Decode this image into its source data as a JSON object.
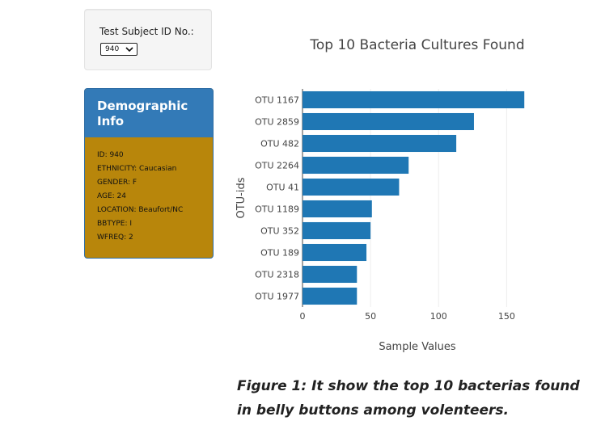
{
  "selector": {
    "label": "Test Subject ID No.:",
    "selected_value": "940"
  },
  "demographic": {
    "title": "Demographic Info",
    "lines": [
      "ID: 940",
      "ETHNICITY: Caucasian",
      "GENDER: F",
      "AGE: 24",
      "LOCATION: Beaufort/NC",
      "BBTYPE: I",
      "WFREQ: 2"
    ]
  },
  "caption": "Figure 1: It show the top 10 bacterias found in belly buttons among volenteers.",
  "colors": {
    "bar": "#1f77b4",
    "panel_heading": "#337ab7",
    "panel_body": "#b8860b"
  },
  "chart_data": {
    "type": "bar",
    "orientation": "horizontal",
    "title": "Top 10 Bacteria Cultures Found",
    "xlabel": "Sample Values",
    "ylabel": "OTU-ids",
    "categories": [
      "OTU 1167",
      "OTU 2859",
      "OTU 482",
      "OTU 2264",
      "OTU 41",
      "OTU 1189",
      "OTU 352",
      "OTU 189",
      "OTU 2318",
      "OTU 1977"
    ],
    "values": [
      163,
      126,
      113,
      78,
      71,
      51,
      50,
      47,
      40,
      40
    ],
    "xlim": [
      0,
      170
    ],
    "xticks": [
      0,
      50,
      100,
      150
    ],
    "grid": true
  }
}
